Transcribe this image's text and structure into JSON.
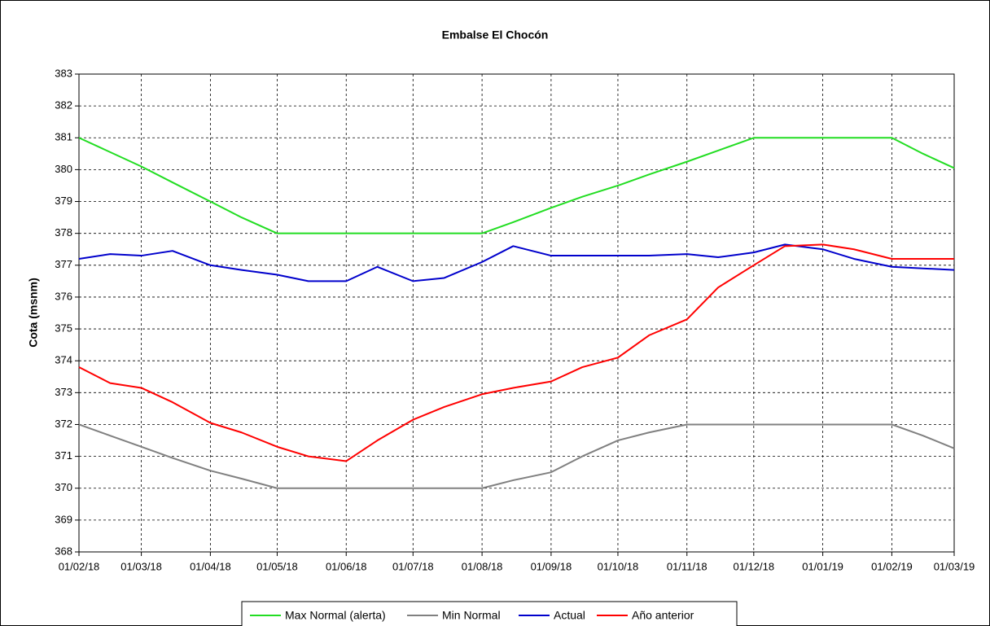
{
  "chart_data": {
    "type": "line",
    "title": "Embalse El Chocón",
    "y_label": "Cota (msnm)",
    "x": [
      "2018-02-01",
      "2018-02-15",
      "2018-03-01",
      "2018-03-15",
      "2018-04-01",
      "2018-04-15",
      "2018-05-01",
      "2018-05-15",
      "2018-06-01",
      "2018-06-15",
      "2018-07-01",
      "2018-07-15",
      "2018-08-01",
      "2018-08-15",
      "2018-09-01",
      "2018-09-15",
      "2018-10-01",
      "2018-10-15",
      "2018-11-01",
      "2018-11-15",
      "2018-12-01",
      "2018-12-15",
      "2019-01-01",
      "2019-01-15",
      "2019-02-01",
      "2019-02-15",
      "2019-03-01"
    ],
    "series": [
      {
        "name": "Max Normal (alerta)",
        "color": "#22dd22",
        "values": [
          381,
          380.55,
          380.1,
          379.6,
          379.0,
          378.5,
          378,
          378,
          378,
          378,
          378,
          378,
          378,
          378.35,
          378.8,
          379.15,
          379.5,
          379.85,
          380.25,
          380.6,
          381,
          381,
          381,
          381,
          381,
          380.5,
          380.05
        ]
      },
      {
        "name": "Min Normal",
        "color": "#808080",
        "values": [
          372,
          371.65,
          371.3,
          370.95,
          370.55,
          370.3,
          370,
          370,
          370,
          370,
          370,
          370,
          370,
          370.25,
          370.5,
          371.0,
          371.5,
          371.75,
          372,
          372,
          372,
          372,
          372,
          372,
          372,
          371.65,
          371.25
        ]
      },
      {
        "name": "Actual",
        "color": "#0000cc",
        "values": [
          377.2,
          377.35,
          377.3,
          377.45,
          377.0,
          376.85,
          376.7,
          376.5,
          376.5,
          376.95,
          376.5,
          376.6,
          377.1,
          377.6,
          377.3,
          377.3,
          377.3,
          377.3,
          377.35,
          377.25,
          377.4,
          377.65,
          377.5,
          377.2,
          376.95,
          376.9,
          376.85
        ]
      },
      {
        "name": "Año anterior",
        "color": "#ff0000",
        "values": [
          373.8,
          373.3,
          373.15,
          372.7,
          372.05,
          371.75,
          371.3,
          371.0,
          370.85,
          371.5,
          372.15,
          372.55,
          372.95,
          373.15,
          373.35,
          373.8,
          374.1,
          374.8,
          375.3,
          376.3,
          377.0,
          377.6,
          377.65,
          377.5,
          377.2,
          377.2,
          377.2
        ]
      }
    ],
    "xlim": [
      "2018-02-01",
      "2019-03-01"
    ],
    "xticks": [
      {
        "value": "2018-02-01",
        "label": "01/02/18"
      },
      {
        "value": "2018-03-01",
        "label": "01/03/18"
      },
      {
        "value": "2018-04-01",
        "label": "01/04/18"
      },
      {
        "value": "2018-05-01",
        "label": "01/05/18"
      },
      {
        "value": "2018-06-01",
        "label": "01/06/18"
      },
      {
        "value": "2018-07-01",
        "label": "01/07/18"
      },
      {
        "value": "2018-08-01",
        "label": "01/08/18"
      },
      {
        "value": "2018-09-01",
        "label": "01/09/18"
      },
      {
        "value": "2018-10-01",
        "label": "01/10/18"
      },
      {
        "value": "2018-11-01",
        "label": "01/11/18"
      },
      {
        "value": "2018-12-01",
        "label": "01/12/18"
      },
      {
        "value": "2019-01-01",
        "label": "01/01/19"
      },
      {
        "value": "2019-02-01",
        "label": "01/02/19"
      },
      {
        "value": "2019-03-01",
        "label": "01/03/19"
      }
    ],
    "ylim": [
      368,
      383
    ],
    "yticks": [
      368,
      369,
      370,
      371,
      372,
      373,
      374,
      375,
      376,
      377,
      378,
      379,
      380,
      381,
      382,
      383
    ],
    "grid": true,
    "legend": "bottom"
  }
}
